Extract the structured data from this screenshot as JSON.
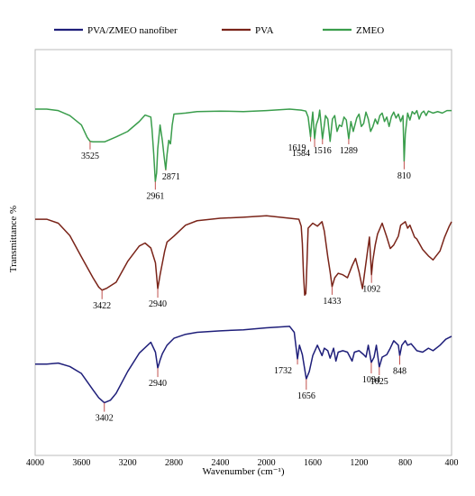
{
  "chart_data": {
    "type": "line",
    "xlabel": "Wavenumber (cm⁻¹)",
    "ylabel": "Transmittance %",
    "xlim": [
      4000,
      400
    ],
    "x_reversed": true,
    "x_ticks": [
      4000,
      3600,
      3200,
      2800,
      2400,
      2000,
      1600,
      1200,
      800,
      400
    ],
    "y_ticks_shown": false,
    "grid": false,
    "legend_position": "top",
    "series": [
      {
        "name": "PVA/ZMEO nanofiber",
        "color": "#1f1f7a",
        "points": [
          [
            4000,
            73.4
          ],
          [
            3900,
            73.4
          ],
          [
            3800,
            73.2
          ],
          [
            3700,
            73.9
          ],
          [
            3600,
            75.3
          ],
          [
            3500,
            78.6
          ],
          [
            3450,
            80.2
          ],
          [
            3402,
            81.2
          ],
          [
            3350,
            80.7
          ],
          [
            3300,
            79.3
          ],
          [
            3200,
            74.9
          ],
          [
            3100,
            71.2
          ],
          [
            3000,
            69.0
          ],
          [
            2960,
            71.0
          ],
          [
            2940,
            74.2
          ],
          [
            2920,
            72.6
          ],
          [
            2900,
            71.3
          ],
          [
            2860,
            69.6
          ],
          [
            2800,
            68.2
          ],
          [
            2700,
            67.4
          ],
          [
            2600,
            67.0
          ],
          [
            2400,
            66.7
          ],
          [
            2200,
            66.5
          ],
          [
            2000,
            66.1
          ],
          [
            1800,
            65.8
          ],
          [
            1760,
            67.0
          ],
          [
            1732,
            72.4
          ],
          [
            1715,
            69.6
          ],
          [
            1690,
            71.5
          ],
          [
            1656,
            76.4
          ],
          [
            1630,
            74.9
          ],
          [
            1600,
            71.7
          ],
          [
            1560,
            69.6
          ],
          [
            1520,
            71.7
          ],
          [
            1500,
            70.2
          ],
          [
            1470,
            70.7
          ],
          [
            1450,
            72.2
          ],
          [
            1420,
            70.2
          ],
          [
            1400,
            72.8
          ],
          [
            1380,
            71.0
          ],
          [
            1340,
            70.7
          ],
          [
            1300,
            71.0
          ],
          [
            1260,
            72.8
          ],
          [
            1240,
            71.0
          ],
          [
            1200,
            70.7
          ],
          [
            1160,
            71.5
          ],
          [
            1140,
            72.0
          ],
          [
            1120,
            69.6
          ],
          [
            1094,
            73.1
          ],
          [
            1070,
            72.0
          ],
          [
            1050,
            69.6
          ],
          [
            1025,
            74.0
          ],
          [
            1000,
            72.0
          ],
          [
            960,
            71.5
          ],
          [
            930,
            70.2
          ],
          [
            900,
            68.7
          ],
          [
            860,
            69.6
          ],
          [
            848,
            71.7
          ],
          [
            830,
            69.6
          ],
          [
            800,
            68.7
          ],
          [
            780,
            69.6
          ],
          [
            750,
            69.3
          ],
          [
            700,
            70.7
          ],
          [
            650,
            71.0
          ],
          [
            600,
            70.2
          ],
          [
            560,
            70.7
          ],
          [
            500,
            69.6
          ],
          [
            450,
            68.4
          ],
          [
            400,
            67.8
          ]
        ]
      },
      {
        "name": "PVA",
        "color": "#7a2419",
        "points": [
          [
            4000,
            44.2
          ],
          [
            3900,
            44.2
          ],
          [
            3800,
            45.0
          ],
          [
            3700,
            47.5
          ],
          [
            3600,
            51.8
          ],
          [
            3500,
            56.0
          ],
          [
            3450,
            57.9
          ],
          [
            3422,
            58.5
          ],
          [
            3380,
            58.1
          ],
          [
            3300,
            56.9
          ],
          [
            3200,
            52.7
          ],
          [
            3100,
            49.6
          ],
          [
            3050,
            49.0
          ],
          [
            3000,
            50.0
          ],
          [
            2960,
            53.0
          ],
          [
            2940,
            58.2
          ],
          [
            2920,
            55.4
          ],
          [
            2900,
            53.0
          ],
          [
            2880,
            50.6
          ],
          [
            2860,
            48.8
          ],
          [
            2800,
            47.6
          ],
          [
            2700,
            45.4
          ],
          [
            2600,
            44.5
          ],
          [
            2400,
            44.0
          ],
          [
            2200,
            43.8
          ],
          [
            2000,
            43.5
          ],
          [
            1800,
            44.0
          ],
          [
            1720,
            44.2
          ],
          [
            1700,
            45.6
          ],
          [
            1690,
            49.1
          ],
          [
            1680,
            55.4
          ],
          [
            1670,
            59.5
          ],
          [
            1660,
            59.2
          ],
          [
            1650,
            53.0
          ],
          [
            1640,
            46.0
          ],
          [
            1600,
            45.0
          ],
          [
            1560,
            45.6
          ],
          [
            1520,
            44.7
          ],
          [
            1500,
            46.6
          ],
          [
            1470,
            51.8
          ],
          [
            1450,
            54.8
          ],
          [
            1433,
            57.8
          ],
          [
            1410,
            56.0
          ],
          [
            1380,
            55.1
          ],
          [
            1340,
            55.4
          ],
          [
            1300,
            56.0
          ],
          [
            1260,
            53.6
          ],
          [
            1230,
            52.1
          ],
          [
            1200,
            54.8
          ],
          [
            1170,
            58.2
          ],
          [
            1140,
            53.0
          ],
          [
            1110,
            47.8
          ],
          [
            1092,
            55.4
          ],
          [
            1080,
            52.4
          ],
          [
            1060,
            49.4
          ],
          [
            1040,
            47.2
          ],
          [
            1000,
            45.0
          ],
          [
            960,
            47.8
          ],
          [
            930,
            50.1
          ],
          [
            900,
            49.4
          ],
          [
            860,
            47.6
          ],
          [
            840,
            45.4
          ],
          [
            800,
            44.7
          ],
          [
            780,
            46.0
          ],
          [
            760,
            45.4
          ],
          [
            720,
            47.8
          ],
          [
            700,
            48.2
          ],
          [
            650,
            50.3
          ],
          [
            600,
            51.6
          ],
          [
            560,
            52.4
          ],
          [
            500,
            50.6
          ],
          [
            460,
            47.8
          ],
          [
            420,
            45.6
          ],
          [
            400,
            44.7
          ]
        ]
      },
      {
        "name": "ZMEO",
        "color": "#3a9d4c",
        "points": [
          [
            4000,
            22.0
          ],
          [
            3900,
            22.0
          ],
          [
            3800,
            22.3
          ],
          [
            3700,
            23.3
          ],
          [
            3600,
            25.2
          ],
          [
            3550,
            27.7
          ],
          [
            3525,
            28.5
          ],
          [
            3500,
            28.6
          ],
          [
            3400,
            28.6
          ],
          [
            3300,
            27.6
          ],
          [
            3200,
            26.5
          ],
          [
            3100,
            24.5
          ],
          [
            3050,
            23.2
          ],
          [
            3000,
            23.6
          ],
          [
            2990,
            26.0
          ],
          [
            2975,
            31.0
          ],
          [
            2961,
            36.6
          ],
          [
            2950,
            34.9
          ],
          [
            2940,
            30.0
          ],
          [
            2920,
            25.2
          ],
          [
            2900,
            28.4
          ],
          [
            2885,
            31.6
          ],
          [
            2871,
            34.2
          ],
          [
            2860,
            31.2
          ],
          [
            2845,
            28.3
          ],
          [
            2830,
            29.0
          ],
          [
            2815,
            25.2
          ],
          [
            2800,
            23.0
          ],
          [
            2700,
            22.8
          ],
          [
            2600,
            22.5
          ],
          [
            2400,
            22.4
          ],
          [
            2200,
            22.5
          ],
          [
            2000,
            22.3
          ],
          [
            1800,
            22.0
          ],
          [
            1700,
            22.2
          ],
          [
            1660,
            22.4
          ],
          [
            1640,
            23.6
          ],
          [
            1619,
            27.6
          ],
          [
            1610,
            24.9
          ],
          [
            1600,
            22.6
          ],
          [
            1584,
            28.0
          ],
          [
            1570,
            25.2
          ],
          [
            1550,
            23.8
          ],
          [
            1540,
            22.2
          ],
          [
            1516,
            28.0
          ],
          [
            1500,
            25.2
          ],
          [
            1490,
            23.3
          ],
          [
            1470,
            24.0
          ],
          [
            1450,
            28.5
          ],
          [
            1430,
            24.0
          ],
          [
            1410,
            23.3
          ],
          [
            1390,
            26.5
          ],
          [
            1370,
            25.2
          ],
          [
            1350,
            25.5
          ],
          [
            1330,
            23.6
          ],
          [
            1310,
            24.2
          ],
          [
            1289,
            28.0
          ],
          [
            1270,
            24.5
          ],
          [
            1250,
            26.5
          ],
          [
            1220,
            23.8
          ],
          [
            1200,
            23.0
          ],
          [
            1180,
            25.5
          ],
          [
            1160,
            24.9
          ],
          [
            1140,
            22.6
          ],
          [
            1120,
            24.0
          ],
          [
            1100,
            26.5
          ],
          [
            1080,
            25.5
          ],
          [
            1060,
            24.0
          ],
          [
            1040,
            25.0
          ],
          [
            1020,
            23.3
          ],
          [
            1000,
            22.8
          ],
          [
            980,
            24.5
          ],
          [
            960,
            23.6
          ],
          [
            940,
            25.5
          ],
          [
            920,
            23.5
          ],
          [
            900,
            22.6
          ],
          [
            880,
            23.8
          ],
          [
            860,
            23.0
          ],
          [
            840,
            24.5
          ],
          [
            820,
            23.3
          ],
          [
            810,
            32.5
          ],
          [
            800,
            27.0
          ],
          [
            780,
            22.8
          ],
          [
            760,
            24.2
          ],
          [
            740,
            22.5
          ],
          [
            720,
            23.0
          ],
          [
            700,
            22.3
          ],
          [
            680,
            24.0
          ],
          [
            660,
            22.8
          ],
          [
            640,
            22.4
          ],
          [
            620,
            23.3
          ],
          [
            600,
            22.4
          ],
          [
            560,
            22.8
          ],
          [
            520,
            22.5
          ],
          [
            480,
            22.8
          ],
          [
            440,
            22.3
          ],
          [
            400,
            22.3
          ]
        ]
      }
    ],
    "annotations": [
      {
        "series": "ZMEO",
        "x": 3525,
        "label": "3525"
      },
      {
        "series": "ZMEO",
        "x": 2961,
        "label": "2961"
      },
      {
        "series": "ZMEO",
        "x": 2871,
        "label": "2871"
      },
      {
        "series": "ZMEO",
        "x": 1619,
        "label": "1619"
      },
      {
        "series": "ZMEO",
        "x": 1584,
        "label": "1584"
      },
      {
        "series": "ZMEO",
        "x": 1516,
        "label": "1516"
      },
      {
        "series": "ZMEO",
        "x": 1289,
        "label": "1289"
      },
      {
        "series": "ZMEO",
        "x": 810,
        "label": "810"
      },
      {
        "series": "PVA",
        "x": 3422,
        "label": "3422"
      },
      {
        "series": "PVA",
        "x": 2940,
        "label": "2940"
      },
      {
        "series": "PVA",
        "x": 1433,
        "label": "1433"
      },
      {
        "series": "PVA",
        "x": 1092,
        "label": "1092"
      },
      {
        "series": "PVA/ZMEO nanofiber",
        "x": 3402,
        "label": "3402"
      },
      {
        "series": "PVA/ZMEO nanofiber",
        "x": 2940,
        "label": "2940"
      },
      {
        "series": "PVA/ZMEO nanofiber",
        "x": 1732,
        "label": "1732"
      },
      {
        "series": "PVA/ZMEO nanofiber",
        "x": 1656,
        "label": "1656"
      },
      {
        "series": "PVA/ZMEO nanofiber",
        "x": 1094,
        "label": "1094"
      },
      {
        "series": "PVA/ZMEO nanofiber",
        "x": 1025,
        "label": "1025"
      },
      {
        "series": "PVA/ZMEO nanofiber",
        "x": 848,
        "label": "848"
      }
    ]
  }
}
